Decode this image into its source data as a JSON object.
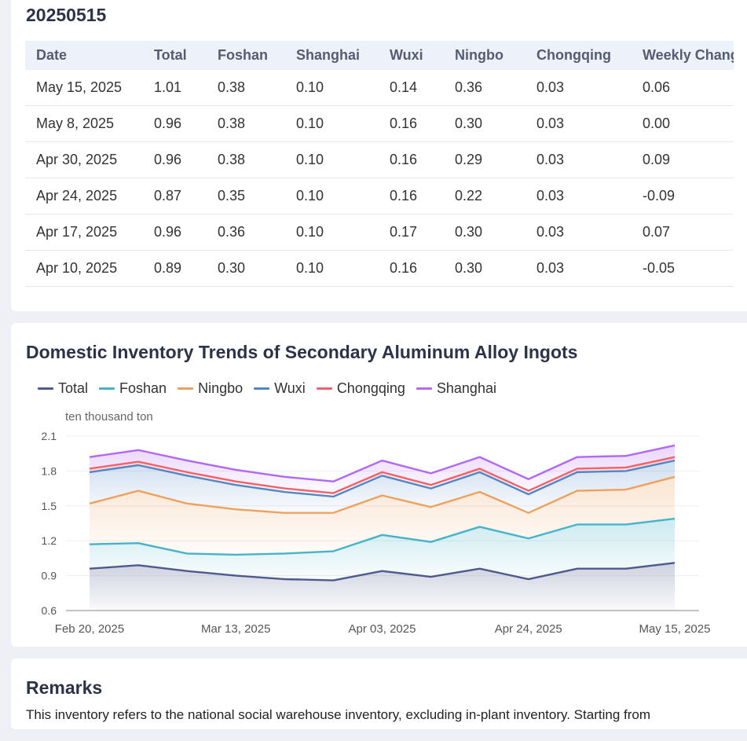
{
  "table_section": {
    "title": "20250515",
    "headers": [
      "Date",
      "Total",
      "Foshan",
      "Shanghai",
      "Wuxi",
      "Ningbo",
      "Chongqing",
      "Weekly Change"
    ],
    "rows": [
      [
        "May 15, 2025",
        "1.01",
        "0.38",
        "0.10",
        "0.14",
        "0.36",
        "0.03",
        "0.06"
      ],
      [
        "May 8, 2025",
        "0.96",
        "0.38",
        "0.10",
        "0.16",
        "0.30",
        "0.03",
        "0.00"
      ],
      [
        "Apr 30, 2025",
        "0.96",
        "0.38",
        "0.10",
        "0.16",
        "0.29",
        "0.03",
        "0.09"
      ],
      [
        "Apr 24, 2025",
        "0.87",
        "0.35",
        "0.10",
        "0.16",
        "0.22",
        "0.03",
        "-0.09"
      ],
      [
        "Apr 17, 2025",
        "0.96",
        "0.36",
        "0.10",
        "0.17",
        "0.30",
        "0.03",
        "0.07"
      ],
      [
        "Apr 10, 2025",
        "0.89",
        "0.30",
        "0.10",
        "0.16",
        "0.30",
        "0.03",
        "-0.05"
      ]
    ]
  },
  "chart_section": {
    "title": "Domestic Inventory Trends of Secondary Aluminum Alloy Ingots"
  },
  "chart_data": {
    "type": "area",
    "stacked": true,
    "title": "Domestic Inventory Trends of Secondary Aluminum Alloy Ingots",
    "ylabel": "ten thousand ton",
    "ylim": [
      0.6,
      2.1
    ],
    "yticks": [
      "2.1",
      "1.8",
      "1.5",
      "1.2",
      "0.9",
      "0.6"
    ],
    "x": [
      "Feb 20, 2025",
      "Feb 27, 2025",
      "Mar 6, 2025",
      "Mar 13, 2025",
      "Mar 20, 2025",
      "Mar 27, 2025",
      "Apr 03, 2025",
      "Apr 10, 2025",
      "Apr 17, 2025",
      "Apr 24, 2025",
      "Apr 30, 2025",
      "May 8, 2025",
      "May 15, 2025"
    ],
    "xtick_labels": [
      "Feb 20, 2025",
      "Mar 13, 2025",
      "Apr 03, 2025",
      "Apr 24, 2025",
      "May 15, 2025"
    ],
    "legend": [
      "Total",
      "Foshan",
      "Ningbo",
      "Wuxi",
      "Chongqing",
      "Shanghai"
    ],
    "series": [
      {
        "name": "Total",
        "color": "#4e5a8e",
        "values": [
          0.96,
          0.99,
          0.94,
          0.9,
          0.87,
          0.86,
          0.94,
          0.89,
          0.96,
          0.87,
          0.96,
          0.96,
          1.01
        ]
      },
      {
        "name": "Foshan",
        "color": "#46b3c9",
        "values": [
          1.17,
          1.18,
          1.09,
          1.08,
          1.09,
          1.11,
          1.25,
          1.19,
          1.32,
          1.22,
          1.34,
          1.34,
          1.39
        ]
      },
      {
        "name": "Ningbo",
        "color": "#eea15e",
        "values": [
          1.52,
          1.63,
          1.52,
          1.47,
          1.44,
          1.44,
          1.59,
          1.49,
          1.62,
          1.44,
          1.63,
          1.64,
          1.75
        ]
      },
      {
        "name": "Wuxi",
        "color": "#5187c7",
        "values": [
          1.79,
          1.85,
          1.76,
          1.68,
          1.62,
          1.58,
          1.76,
          1.65,
          1.79,
          1.6,
          1.79,
          1.8,
          1.89
        ]
      },
      {
        "name": "Chongqing",
        "color": "#f2616b",
        "values": [
          1.82,
          1.88,
          1.79,
          1.71,
          1.65,
          1.61,
          1.79,
          1.68,
          1.82,
          1.63,
          1.82,
          1.83,
          1.92
        ]
      },
      {
        "name": "Shanghai",
        "color": "#b168f2",
        "values": [
          1.92,
          1.98,
          1.89,
          1.81,
          1.75,
          1.71,
          1.89,
          1.78,
          1.92,
          1.73,
          1.92,
          1.93,
          2.02
        ]
      }
    ]
  },
  "remarks_section": {
    "title": "Remarks",
    "text": "This inventory refers to the national social warehouse inventory, excluding in-plant inventory. Starting from"
  }
}
